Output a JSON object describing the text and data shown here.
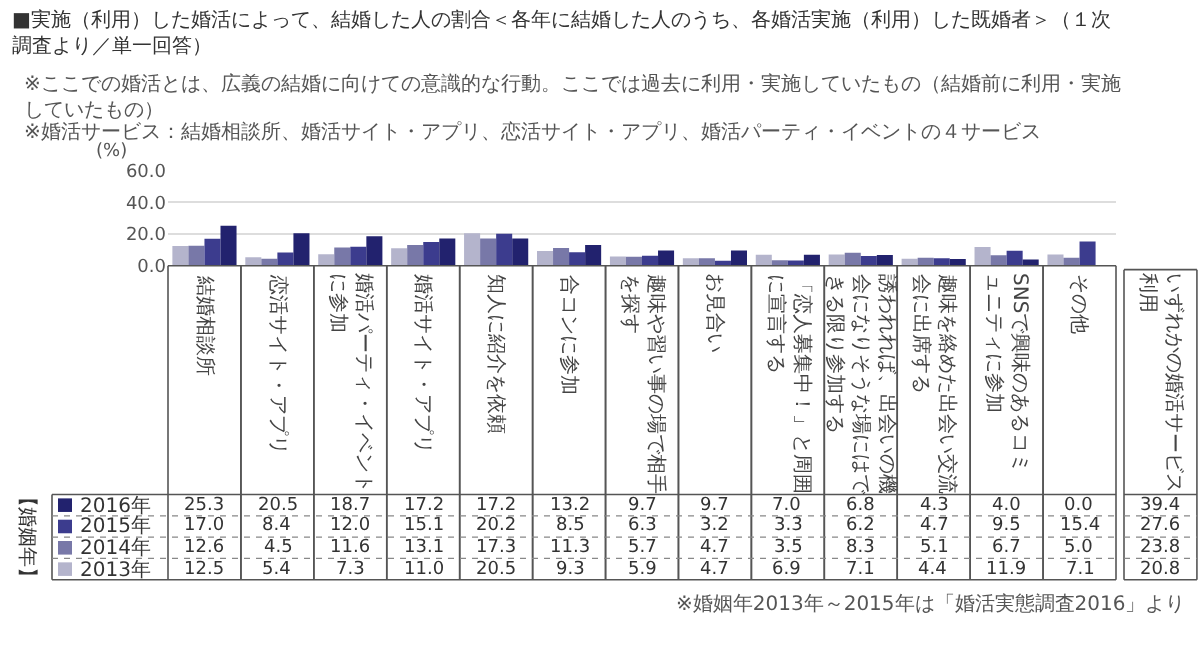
{
  "chart_data": {
    "type": "bar",
    "title": "■実施（利用）した婚活によって、結婚した人の割合＜各年に結婚した人のうち、各婚活実施（利用）した既婚者＞（１次調査より／単一回答）",
    "annotations": [
      "※ここでの婚活とは、広義の結婚に向けての意識的な行動。ここでは過去に利用・実施していたもの（結婚前に利用・実施していたもの）",
      "※婚活サービス：結婚相談所、婚活サイト・アプリ、恋活サイト・アプリ、婚活パーティ・イベントの４サービス",
      "※婚姻年2013年～2015年は「婚活実態調査2016」より"
    ],
    "ylabel": "(%)",
    "legend_title": "【婚姻年】",
    "categories": [
      "結婚相談所",
      "恋活サイト・アプリ",
      "婚活パーティ・イベントに参加",
      "婚活サイト・アプリ",
      "知人に紹介を依頼",
      "合コンに参加",
      "趣味や習い事の場で相手を探す",
      "お見合い",
      "「恋人募集中！」と周囲に宣言する",
      "誘われれば、出会いの機会になりそうな場にはできる限り参加する",
      "趣味を絡めた出会い交流会に出席する",
      "SNSで興味のあるコミュニティに参加",
      "その他",
      "いずれかの婚活サービス利用"
    ],
    "series": [
      {
        "name": "2016年",
        "color": "#22226e",
        "values": [
          25.3,
          20.5,
          18.7,
          17.2,
          17.2,
          13.2,
          9.7,
          9.7,
          7.0,
          6.8,
          4.3,
          4.0,
          0.0,
          null
        ],
        "value_labels": [
          "25.3",
          "20.5",
          "18.7",
          "17.2",
          "17.2",
          "13.2",
          "9.7",
          "9.7",
          "7.0",
          "6.8",
          "4.3",
          "4.0",
          "0.0",
          "39.4"
        ]
      },
      {
        "name": "2015年",
        "color": "#3c3c8e",
        "values": [
          17.0,
          8.4,
          12.0,
          15.1,
          20.2,
          8.5,
          6.3,
          3.2,
          3.3,
          6.2,
          4.7,
          9.5,
          15.4,
          null
        ],
        "value_labels": [
          "17.0",
          "8.4",
          "12.0",
          "15.1",
          "20.2",
          "8.5",
          "6.3",
          "3.2",
          "3.3",
          "6.2",
          "4.7",
          "9.5",
          "15.4",
          "27.6"
        ]
      },
      {
        "name": "2014年",
        "color": "#7878a8",
        "values": [
          12.6,
          4.5,
          11.6,
          13.1,
          17.3,
          11.3,
          5.7,
          4.7,
          3.5,
          8.3,
          5.1,
          6.7,
          5.0,
          null
        ],
        "value_labels": [
          "12.6",
          "4.5",
          "11.6",
          "13.1",
          "17.3",
          "11.3",
          "5.7",
          "4.7",
          "3.5",
          "8.3",
          "5.1",
          "6.7",
          "5.0",
          "23.8"
        ]
      },
      {
        "name": "2013年",
        "color": "#b4b4cc",
        "values": [
          12.5,
          5.4,
          7.3,
          11.0,
          20.5,
          9.3,
          5.9,
          4.7,
          6.9,
          7.1,
          4.4,
          11.9,
          7.1,
          null
        ],
        "value_labels": [
          "12.5",
          "5.4",
          "7.3",
          "11.0",
          "20.5",
          "9.3",
          "5.9",
          "4.7",
          "6.9",
          "7.1",
          "4.4",
          "11.9",
          "7.1",
          "20.8"
        ]
      }
    ],
    "ylim": [
      0,
      60
    ],
    "yticks": [
      {
        "value": 0,
        "label": "0.0"
      },
      {
        "value": 20,
        "label": "20.0"
      },
      {
        "value": 40,
        "label": "40.0"
      },
      {
        "value": 60,
        "label": "60.0"
      }
    ],
    "grid": "y",
    "legend": "bottom left"
  }
}
